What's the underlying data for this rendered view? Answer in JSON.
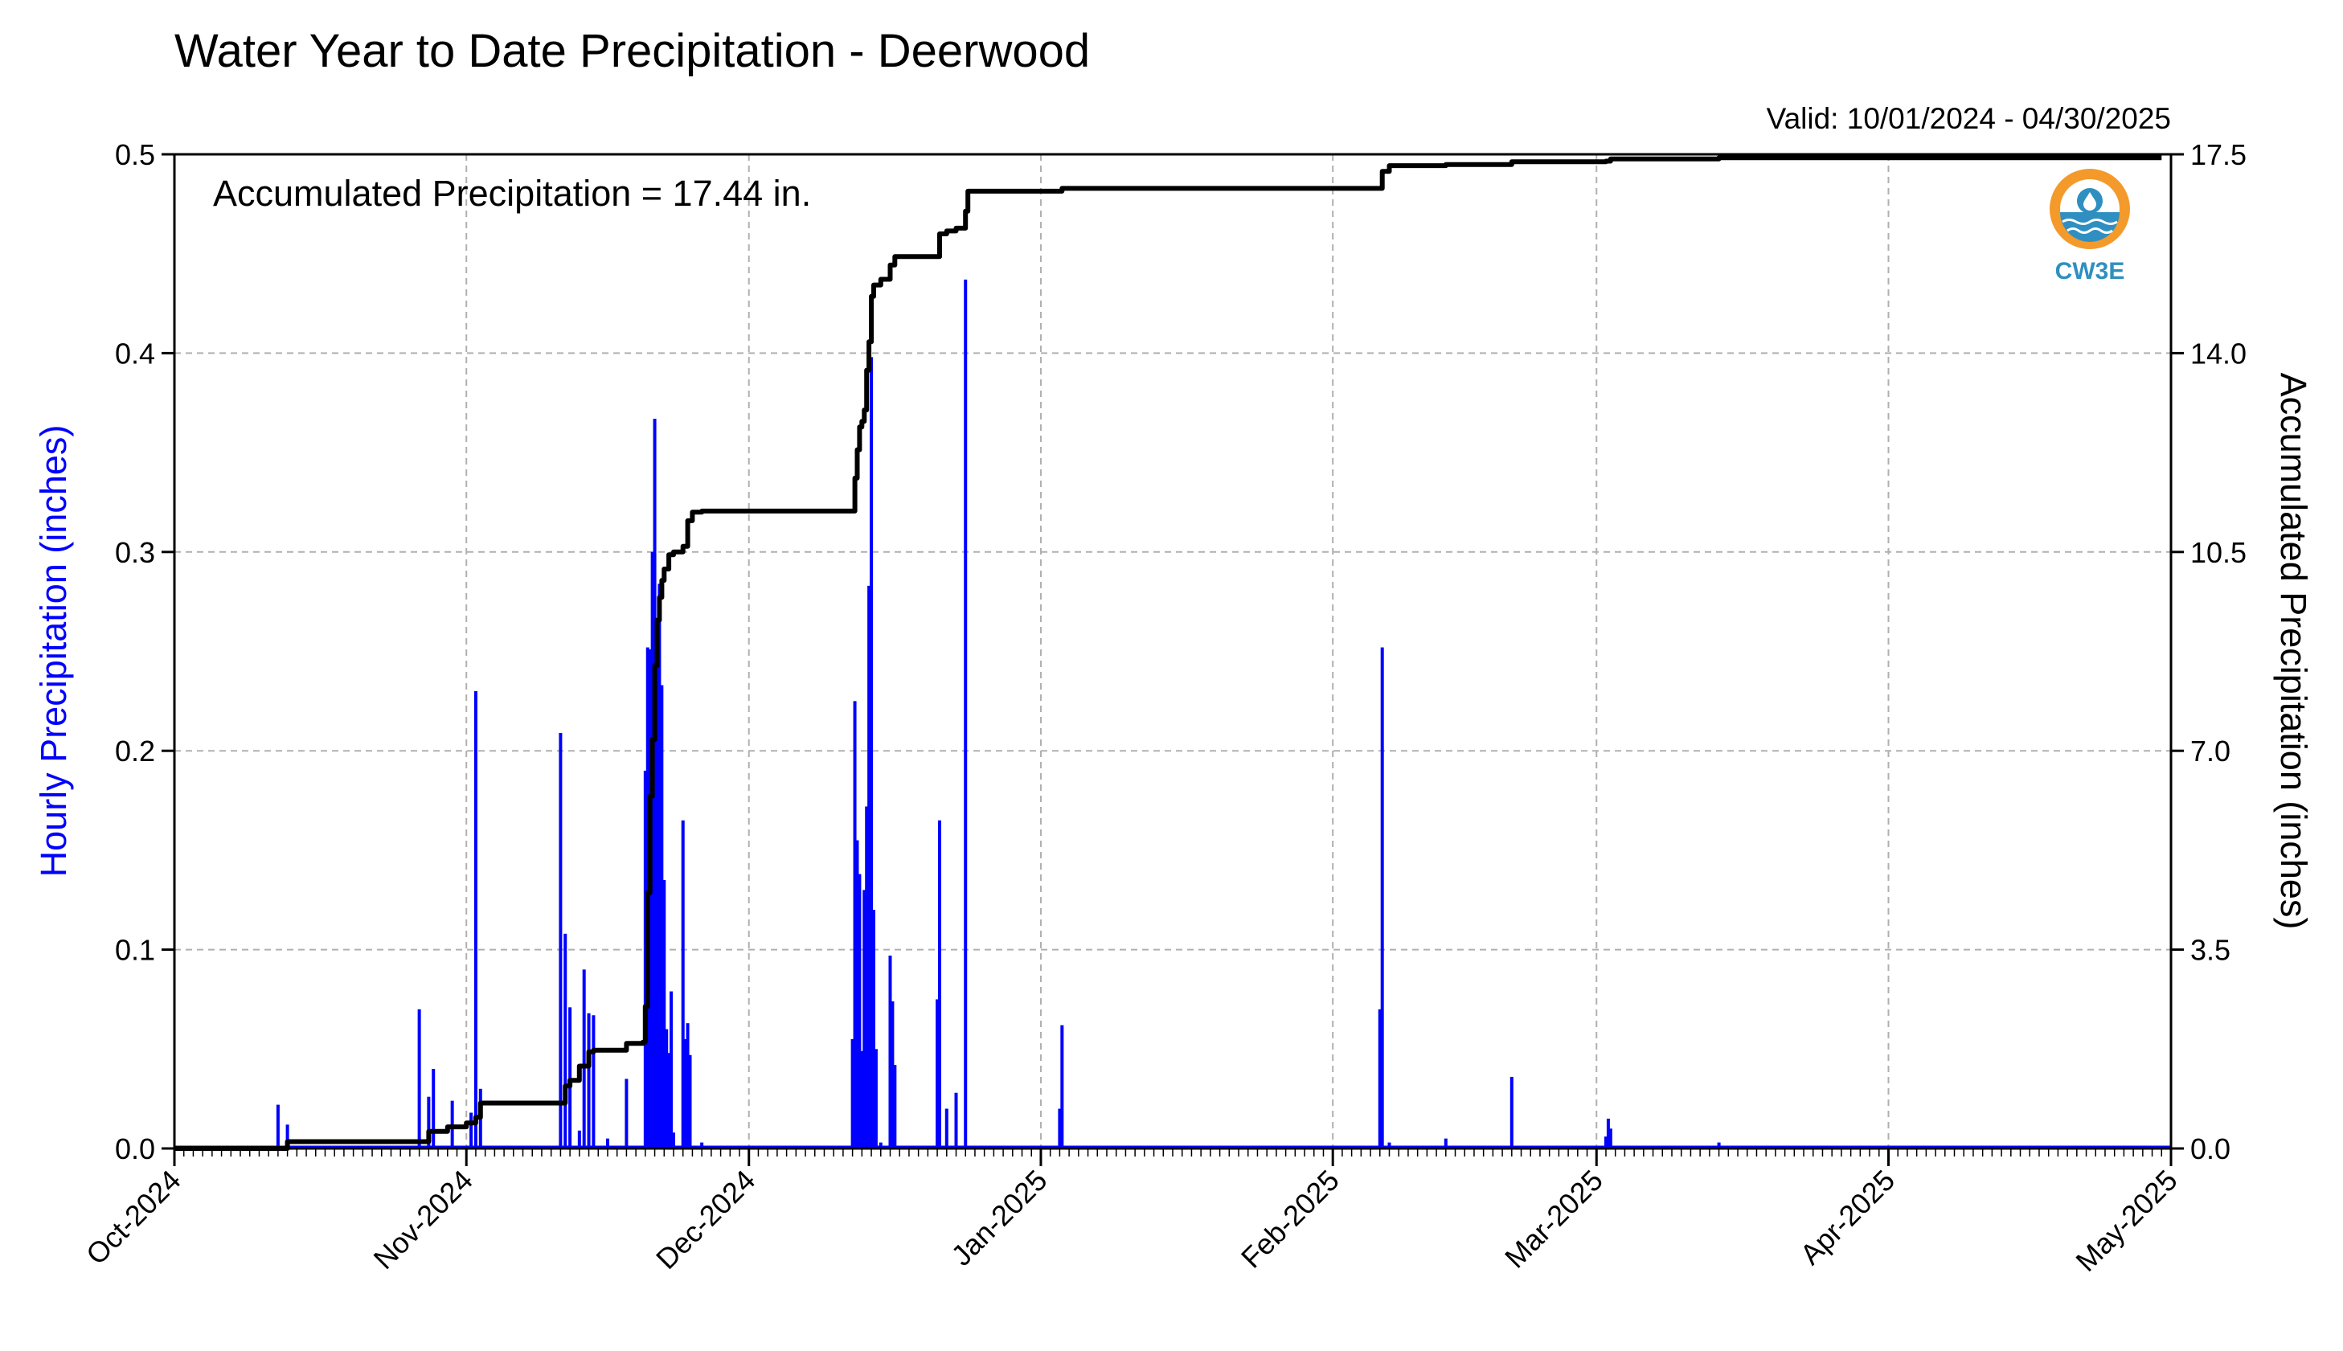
{
  "chart_data": {
    "type": "bar",
    "title": "Water Year to Date Precipitation - Deerwood",
    "subtitle": "Valid: 10/01/2024 - 04/30/2025",
    "annotation": "Accumulated Precipitation = 17.44 in.",
    "logo_text": "CW3E",
    "ylabel": "Hourly Precipitation (inches)",
    "y2label": "Accumulated Precipitation (inches)",
    "ylim": [
      0,
      0.5
    ],
    "y2lim": [
      0,
      17.5
    ],
    "xlim": [
      "2024-10-01",
      "2025-05-01"
    ],
    "grid": true,
    "x_ticks": [
      "Oct-2024",
      "Nov-2024",
      "Dec-2024",
      "Jan-2025",
      "Feb-2025",
      "Mar-2025",
      "Apr-2025",
      "May-2025"
    ],
    "y_ticks": [
      "0.0",
      "0.1",
      "0.2",
      "0.3",
      "0.4",
      "0.5"
    ],
    "y2_ticks": [
      "0.0",
      "3.5",
      "7.0",
      "10.5",
      "14.0",
      "17.5"
    ],
    "colors": {
      "hourly": "#0000ff",
      "accumulated": "#000000",
      "grid": "#b0b0b0",
      "logo_orange": "#f39a2b",
      "logo_blue": "#2f8fc1",
      "ylabel": "#0000ff"
    },
    "series": [
      {
        "name": "Hourly Precipitation",
        "type": "bar",
        "points": [
          [
            "2024-10-12",
            0.022
          ],
          [
            "2024-10-13",
            0.012
          ],
          [
            "2024-10-27",
            0.07
          ],
          [
            "2024-10-28",
            0.026
          ],
          [
            "2024-10-28T12",
            0.04
          ],
          [
            "2024-10-30T12",
            0.024
          ],
          [
            "2024-11-01T12",
            0.018
          ],
          [
            "2024-11-02",
            0.23
          ],
          [
            "2024-11-02T12",
            0.03
          ],
          [
            "2024-11-11",
            0.209
          ],
          [
            "2024-11-11T12",
            0.108
          ],
          [
            "2024-11-12",
            0.071
          ],
          [
            "2024-11-13",
            0.009
          ],
          [
            "2024-11-13T12",
            0.09
          ],
          [
            "2024-11-14",
            0.068
          ],
          [
            "2024-11-14T12",
            0.067
          ],
          [
            "2024-11-16",
            0.005
          ],
          [
            "2024-11-18",
            0.035
          ],
          [
            "2024-11-20",
            0.19
          ],
          [
            "2024-11-20T06",
            0.252
          ],
          [
            "2024-11-20T12",
            0.251
          ],
          [
            "2024-11-20T18",
            0.3
          ],
          [
            "2024-11-21",
            0.367
          ],
          [
            "2024-11-21T06",
            0.25
          ],
          [
            "2024-11-21T12",
            0.284
          ],
          [
            "2024-11-21T18",
            0.233
          ],
          [
            "2024-11-22",
            0.135
          ],
          [
            "2024-11-22T06",
            0.06
          ],
          [
            "2024-11-22T12",
            0.048
          ],
          [
            "2024-11-22T18",
            0.079
          ],
          [
            "2024-11-23",
            0.008
          ],
          [
            "2024-11-24",
            0.165
          ],
          [
            "2024-11-24T06",
            0.055
          ],
          [
            "2024-11-24T12",
            0.063
          ],
          [
            "2024-11-24T18",
            0.047
          ],
          [
            "2024-11-26",
            0.003
          ],
          [
            "2024-12-12",
            0.055
          ],
          [
            "2024-12-12T06",
            0.225
          ],
          [
            "2024-12-12T12",
            0.155
          ],
          [
            "2024-12-12T18",
            0.138
          ],
          [
            "2024-12-13",
            0.049
          ],
          [
            "2024-12-13T06",
            0.13
          ],
          [
            "2024-12-13T12",
            0.172
          ],
          [
            "2024-12-13T18",
            0.283
          ],
          [
            "2024-12-14",
            0.398
          ],
          [
            "2024-12-14T06",
            0.12
          ],
          [
            "2024-12-14T12",
            0.05
          ],
          [
            "2024-12-15",
            0.003
          ],
          [
            "2024-12-16",
            0.097
          ],
          [
            "2024-12-16T06",
            0.074
          ],
          [
            "2024-12-16T12",
            0.042
          ],
          [
            "2024-12-21",
            0.075
          ],
          [
            "2024-12-21T06",
            0.165
          ],
          [
            "2024-12-22",
            0.02
          ],
          [
            "2024-12-23",
            0.028
          ],
          [
            "2024-12-24",
            0.437
          ],
          [
            "2025-01-03",
            0.02
          ],
          [
            "2025-01-03T06",
            0.062
          ],
          [
            "2025-02-06",
            0.07
          ],
          [
            "2025-02-06T06",
            0.252
          ],
          [
            "2025-02-07",
            0.003
          ],
          [
            "2025-02-13",
            0.005
          ],
          [
            "2025-02-20",
            0.036
          ],
          [
            "2025-03-02",
            0.006
          ],
          [
            "2025-03-02T06",
            0.015
          ],
          [
            "2025-03-02T12",
            0.01
          ],
          [
            "2025-03-14",
            0.003
          ]
        ]
      },
      {
        "name": "Accumulated Precipitation",
        "type": "line",
        "points": [
          [
            "2024-10-01",
            0.0
          ],
          [
            "2024-10-12",
            0.0
          ],
          [
            "2024-10-13",
            0.12
          ],
          [
            "2024-10-27",
            0.12
          ],
          [
            "2024-10-28",
            0.3
          ],
          [
            "2024-10-30",
            0.38
          ],
          [
            "2024-11-01",
            0.45
          ],
          [
            "2024-11-02",
            0.55
          ],
          [
            "2024-11-02T12",
            0.8
          ],
          [
            "2024-11-11",
            0.8
          ],
          [
            "2024-11-11T12",
            1.1
          ],
          [
            "2024-11-12",
            1.2
          ],
          [
            "2024-11-13",
            1.45
          ],
          [
            "2024-11-14",
            1.7
          ],
          [
            "2024-11-14T12",
            1.73
          ],
          [
            "2024-11-17",
            1.73
          ],
          [
            "2024-11-18",
            1.85
          ],
          [
            "2024-11-19T18",
            1.87
          ],
          [
            "2024-11-20",
            2.5
          ],
          [
            "2024-11-20T06",
            4.5
          ],
          [
            "2024-11-20T12",
            6.2
          ],
          [
            "2024-11-20T18",
            7.2
          ],
          [
            "2024-11-21",
            8.5
          ],
          [
            "2024-11-21T06",
            9.3
          ],
          [
            "2024-11-21T12",
            9.7
          ],
          [
            "2024-11-21T18",
            10.0
          ],
          [
            "2024-11-22",
            10.2
          ],
          [
            "2024-11-22T12",
            10.45
          ],
          [
            "2024-11-23",
            10.5
          ],
          [
            "2024-11-24",
            10.6
          ],
          [
            "2024-11-24T12",
            11.05
          ],
          [
            "2024-11-25",
            11.2
          ],
          [
            "2024-11-26",
            11.22
          ],
          [
            "2024-12-12",
            11.22
          ],
          [
            "2024-12-12T06",
            11.8
          ],
          [
            "2024-12-12T12",
            12.3
          ],
          [
            "2024-12-12T18",
            12.7
          ],
          [
            "2024-12-13",
            12.8
          ],
          [
            "2024-12-13T06",
            13.0
          ],
          [
            "2024-12-13T12",
            13.7
          ],
          [
            "2024-12-13T18",
            14.2
          ],
          [
            "2024-12-14",
            15.0
          ],
          [
            "2024-12-14T06",
            15.2
          ],
          [
            "2024-12-15",
            15.3
          ],
          [
            "2024-12-16",
            15.55
          ],
          [
            "2024-12-16T12",
            15.7
          ],
          [
            "2024-12-21",
            15.7
          ],
          [
            "2024-12-21T06",
            16.1
          ],
          [
            "2024-12-22",
            16.15
          ],
          [
            "2024-12-23",
            16.2
          ],
          [
            "2024-12-24",
            16.5
          ],
          [
            "2024-12-24T06",
            16.85
          ],
          [
            "2025-01-03",
            16.85
          ],
          [
            "2025-01-03T06",
            16.9
          ],
          [
            "2025-02-06",
            16.9
          ],
          [
            "2025-02-06T06",
            17.2
          ],
          [
            "2025-02-07",
            17.3
          ],
          [
            "2025-02-13",
            17.32
          ],
          [
            "2025-02-20",
            17.37
          ],
          [
            "2025-03-02",
            17.38
          ],
          [
            "2025-03-02T12",
            17.42
          ],
          [
            "2025-03-14",
            17.44
          ],
          [
            "2025-04-30",
            17.44
          ]
        ]
      }
    ]
  }
}
